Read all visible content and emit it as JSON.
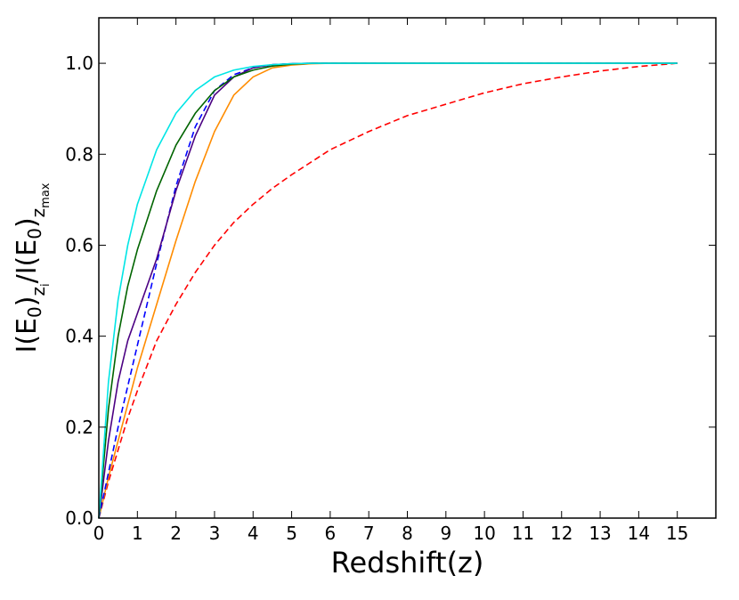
{
  "chart_data": {
    "type": "line",
    "xlabel": "Redshift(z)",
    "ylabel": {
      "parts": [
        "I(E",
        "0",
        ")",
        "z",
        "i",
        "/I(E",
        "0",
        ")",
        "z",
        "max"
      ]
    },
    "xlim": [
      0,
      16
    ],
    "ylim": [
      0,
      1.1
    ],
    "xticks": [
      0,
      1,
      2,
      3,
      4,
      5,
      6,
      7,
      8,
      9,
      10,
      11,
      12,
      13,
      14,
      15
    ],
    "xtick_labels": [
      "0",
      "1",
      "2",
      "3",
      "4",
      "5",
      "6",
      "7",
      "8",
      "9",
      "10",
      "11",
      "12",
      "13",
      "14",
      "15"
    ],
    "yticks": [
      0,
      0.2,
      0.4,
      0.6,
      0.8,
      1.0
    ],
    "ytick_labels": [
      "0.0",
      "0.2",
      "0.4",
      "0.6",
      "0.8",
      "1.0"
    ],
    "grid": false,
    "series": [
      {
        "color": "#ff0000",
        "dash": "dashed",
        "x": [
          0,
          0.25,
          0.5,
          0.75,
          1,
          1.5,
          2,
          2.5,
          3,
          3.5,
          4,
          4.5,
          5,
          6,
          7,
          8,
          9,
          10,
          11,
          12,
          13,
          14,
          15
        ],
        "y": [
          0,
          0.08,
          0.15,
          0.22,
          0.28,
          0.39,
          0.47,
          0.54,
          0.6,
          0.65,
          0.69,
          0.725,
          0.755,
          0.81,
          0.85,
          0.885,
          0.91,
          0.935,
          0.955,
          0.97,
          0.983,
          0.993,
          1.0
        ]
      },
      {
        "color": "#ff8c00",
        "dash": "solid",
        "x": [
          0,
          0.25,
          0.5,
          0.75,
          1,
          1.5,
          2,
          2.5,
          3,
          3.5,
          4,
          4.5,
          5,
          5.5,
          6,
          7,
          8,
          15
        ],
        "y": [
          0,
          0.09,
          0.17,
          0.25,
          0.33,
          0.47,
          0.61,
          0.74,
          0.85,
          0.93,
          0.97,
          0.99,
          0.996,
          0.999,
          1.0,
          1.0,
          1.0,
          1.0
        ]
      },
      {
        "color": "#0000ff",
        "dash": "dashed",
        "x": [
          0,
          0.25,
          0.5,
          0.75,
          1,
          1.5,
          2,
          2.5,
          3,
          3.5,
          4,
          4.5,
          5,
          5.5,
          6,
          7,
          8,
          15
        ],
        "y": [
          0,
          0.1,
          0.2,
          0.29,
          0.38,
          0.56,
          0.73,
          0.86,
          0.94,
          0.975,
          0.99,
          0.997,
          0.999,
          1.0,
          1.0,
          1.0,
          1.0,
          1.0
        ]
      },
      {
        "color": "#4b0082",
        "dash": "solid",
        "x": [
          0,
          0.25,
          0.5,
          0.75,
          1,
          1.5,
          2,
          2.5,
          3,
          3.5,
          4,
          4.5,
          5,
          5.5,
          6,
          7,
          8,
          15
        ],
        "y": [
          0,
          0.17,
          0.3,
          0.39,
          0.45,
          0.57,
          0.72,
          0.84,
          0.93,
          0.97,
          0.99,
          0.997,
          0.999,
          1.0,
          1.0,
          1.0,
          1.0,
          1.0
        ]
      },
      {
        "color": "#006400",
        "dash": "solid",
        "x": [
          0,
          0.25,
          0.5,
          0.75,
          1,
          1.5,
          2,
          2.5,
          3,
          3.5,
          4,
          4.5,
          5,
          5.5,
          6,
          7,
          8,
          15
        ],
        "y": [
          0,
          0.24,
          0.4,
          0.51,
          0.59,
          0.72,
          0.82,
          0.89,
          0.94,
          0.97,
          0.985,
          0.994,
          0.998,
          1.0,
          1.0,
          1.0,
          1.0,
          1.0
        ]
      },
      {
        "color": "#00e5e5",
        "dash": "solid",
        "x": [
          0,
          0.25,
          0.5,
          0.75,
          1,
          1.5,
          2,
          2.5,
          3,
          3.5,
          4,
          4.5,
          5,
          5.5,
          6,
          7,
          8,
          15
        ],
        "y": [
          0,
          0.3,
          0.48,
          0.6,
          0.69,
          0.81,
          0.89,
          0.94,
          0.97,
          0.985,
          0.993,
          0.997,
          0.999,
          1.0,
          1.0,
          1.0,
          1.0,
          1.0
        ]
      }
    ]
  }
}
